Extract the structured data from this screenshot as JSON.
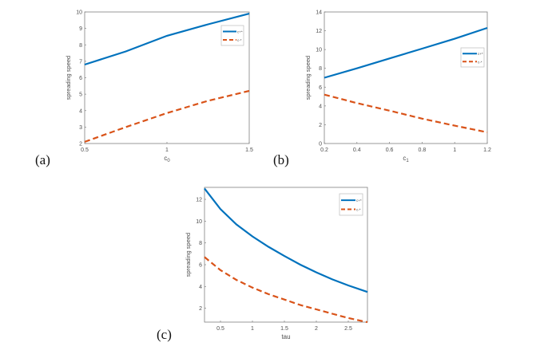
{
  "colors": {
    "c_plus": "#0072BD",
    "c_minus": "#D95319",
    "axis": "#808080"
  },
  "chart_data": [
    {
      "type": "line",
      "panel_label": "(a)",
      "xlabel": "c0",
      "ylabel": "spreading speed",
      "xlim": [
        0.5,
        1.5
      ],
      "ylim": [
        2,
        10
      ],
      "xticks": [
        0.5,
        1,
        1.5
      ],
      "yticks": [
        2,
        3,
        4,
        5,
        6,
        7,
        8,
        9,
        10
      ],
      "legend": "top-right",
      "grid": false,
      "x": [
        0.5,
        0.75,
        1.0,
        1.25,
        1.5
      ],
      "series": [
        {
          "name": "c+*",
          "style": "solid",
          "values": [
            6.8,
            7.6,
            8.55,
            9.25,
            9.9
          ]
        },
        {
          "name": "c-*",
          "style": "dashed",
          "values": [
            2.1,
            3.0,
            3.85,
            4.6,
            5.2
          ]
        }
      ]
    },
    {
      "type": "line",
      "panel_label": "(b)",
      "xlabel": "c1",
      "ylabel": "spreading speed",
      "xlim": [
        0.2,
        1.2
      ],
      "ylim": [
        0,
        14
      ],
      "xticks": [
        0.2,
        0.4,
        0.6,
        0.8,
        1,
        1.2
      ],
      "yticks": [
        0,
        2,
        4,
        6,
        8,
        10,
        12,
        14
      ],
      "legend": "right",
      "grid": false,
      "x": [
        0.2,
        0.4,
        0.6,
        0.8,
        1.0,
        1.2
      ],
      "series": [
        {
          "name": "c+*",
          "style": "solid",
          "values": [
            7.0,
            8.0,
            9.05,
            10.1,
            11.15,
            12.3
          ]
        },
        {
          "name": "c-*",
          "style": "dashed",
          "values": [
            5.2,
            4.3,
            3.5,
            2.65,
            1.9,
            1.2
          ]
        }
      ]
    },
    {
      "type": "line",
      "panel_label": "(c)",
      "xlabel": "tau",
      "ylabel": "spreading speed",
      "xlim": [
        0.25,
        2.8
      ],
      "ylim": [
        0.73,
        13.1
      ],
      "xticks": [
        0.5,
        1,
        1.5,
        2,
        2.5
      ],
      "yticks": [
        2,
        4,
        6,
        8,
        10,
        12
      ],
      "legend": "top-right",
      "grid": false,
      "x": [
        0.25,
        0.5,
        0.75,
        1.0,
        1.25,
        1.5,
        1.75,
        2.0,
        2.25,
        2.5,
        2.8
      ],
      "series": [
        {
          "name": "c+*",
          "style": "solid",
          "values": [
            13.0,
            11.1,
            9.7,
            8.6,
            7.65,
            6.8,
            6.0,
            5.3,
            4.65,
            4.1,
            3.5
          ]
        },
        {
          "name": "c-*",
          "style": "dashed",
          "values": [
            6.7,
            5.5,
            4.6,
            3.9,
            3.3,
            2.8,
            2.3,
            1.9,
            1.5,
            1.1,
            0.72
          ]
        }
      ]
    }
  ]
}
